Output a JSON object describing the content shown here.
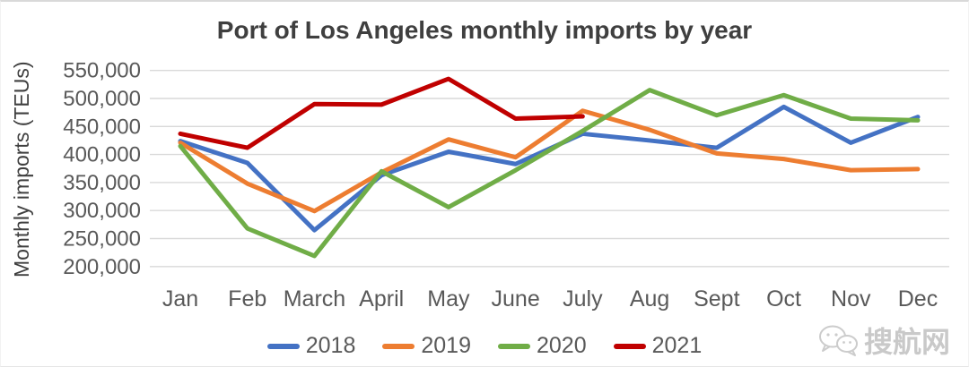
{
  "title": "Port of Los Angeles monthly imports by year",
  "y_axis": {
    "title": "Monthly imports (TEUs)",
    "tick_labels": [
      "550,000",
      "500,000",
      "450,000",
      "400,000",
      "350,000",
      "300,000",
      "250,000",
      "200,000"
    ]
  },
  "x_axis": {
    "labels": [
      "Jan",
      "Feb",
      "March",
      "April",
      "May",
      "June",
      "July",
      "Aug",
      "Sept",
      "Oct",
      "Nov",
      "Dec"
    ]
  },
  "legend": {
    "items": [
      {
        "label": "2018",
        "color": "#4472c4"
      },
      {
        "label": "2019",
        "color": "#ed7d31"
      },
      {
        "label": "2020",
        "color": "#70ad47"
      },
      {
        "label": "2021",
        "color": "#c00000"
      }
    ]
  },
  "watermark": {
    "icon": "wechat-icon",
    "text": "搜航网"
  },
  "colors": {
    "grid": "#d9d9d9",
    "axis_text": "#595959",
    "title_text": "#3f3f3f"
  },
  "chart_data": {
    "type": "line",
    "title": "Port of Los Angeles monthly imports by year",
    "ylabel": "Monthly imports (TEUs)",
    "xlabel": "",
    "categories": [
      "Jan",
      "Feb",
      "March",
      "April",
      "May",
      "June",
      "July",
      "Aug",
      "Sept",
      "Oct",
      "Nov",
      "Dec"
    ],
    "series": [
      {
        "name": "2018",
        "color": "#4472c4",
        "values": [
          424000,
          385000,
          265000,
          363000,
          405000,
          383000,
          437000,
          425000,
          412000,
          485000,
          421000,
          467000
        ]
      },
      {
        "name": "2019",
        "color": "#ed7d31",
        "values": [
          421000,
          348000,
          299000,
          368000,
          427000,
          395000,
          478000,
          444000,
          402000,
          392000,
          372000,
          374000
        ]
      },
      {
        "name": "2020",
        "color": "#70ad47",
        "values": [
          415000,
          268000,
          219000,
          370000,
          306000,
          372000,
          442000,
          515000,
          470000,
          506000,
          464000,
          461000
        ]
      },
      {
        "name": "2021",
        "color": "#c00000",
        "values": [
          437000,
          412000,
          490000,
          489000,
          535000,
          464000,
          468000,
          null,
          null,
          null,
          null,
          null
        ]
      }
    ],
    "ylim": [
      200000,
      550000
    ],
    "ytick_step": 50000,
    "grid": "horizontal",
    "legend_position": "bottom"
  }
}
